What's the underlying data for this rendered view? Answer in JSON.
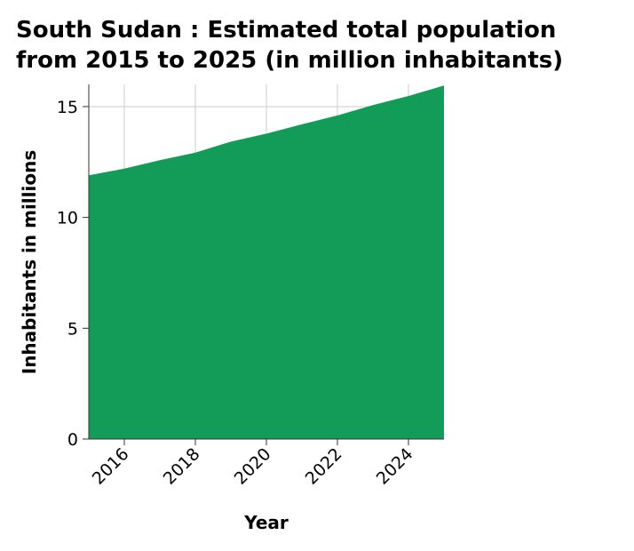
{
  "chart_data": {
    "type": "area",
    "title_lines": [
      "South Sudan : Estimated total population",
      "from 2015 to 2025 (in million inhabitants)"
    ],
    "xlabel": "Year",
    "ylabel": "Inhabitants in millions",
    "x": [
      2015,
      2016,
      2017,
      2018,
      2019,
      2020,
      2021,
      2022,
      2023,
      2024,
      2025
    ],
    "series": [
      {
        "values": [
          11.9,
          12.2,
          12.58,
          12.92,
          13.42,
          13.78,
          14.2,
          14.6,
          15.07,
          15.48,
          15.95
        ]
      }
    ],
    "xlim": [
      2015,
      2025
    ],
    "ylim": [
      0,
      16
    ],
    "x_ticks": [
      2016,
      2018,
      2020,
      2022,
      2024
    ],
    "y_ticks": [
      0,
      5,
      10,
      15
    ],
    "fill_color": "#139c58",
    "grid": true
  }
}
